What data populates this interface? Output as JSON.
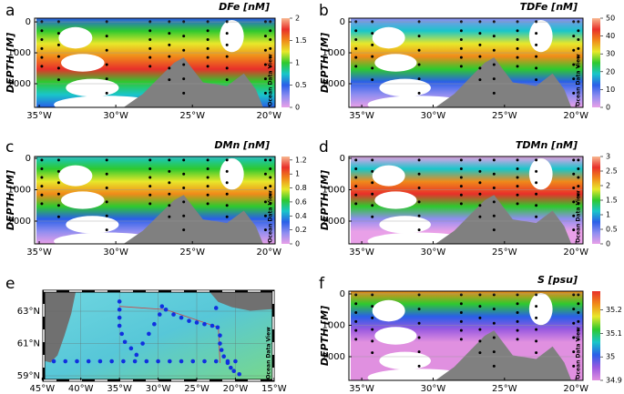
{
  "chart_data": [
    {
      "type": "section",
      "label": "a",
      "title": "DFe [nM]",
      "ylabel": "DEPTH [M]",
      "watermark": "Ocean Data View",
      "xlim": [
        -35.3,
        -19.6
      ],
      "xticks": [
        {
          "value": -35,
          "label": "35°W"
        },
        {
          "value": -30,
          "label": "30°W"
        },
        {
          "value": -25,
          "label": "25°W"
        },
        {
          "value": -20,
          "label": "20°W"
        }
      ],
      "ylim": [
        2765,
        -120
      ],
      "yticks": [
        0,
        1000,
        2000
      ],
      "colormap": [
        "#e9a0e8",
        "#8f8df0",
        "#2a5fe8",
        "#19c6c9",
        "#2ec92e",
        "#e8e82a",
        "#f08a1a",
        "#e8302a",
        "#f8b890"
      ],
      "clim": [
        0,
        2
      ],
      "cticks": [
        0,
        0.5,
        1,
        1.5,
        2
      ]
    },
    {
      "type": "section",
      "label": "b",
      "title": "TDFe [nM]",
      "ylabel": "DEPTH [M]",
      "watermark": "Ocean Data View",
      "xlim": [
        -35.9,
        -19.5
      ],
      "xticks": [
        {
          "value": -35,
          "label": "35°W"
        },
        {
          "value": -30,
          "label": "30°W"
        },
        {
          "value": -25,
          "label": "25°W"
        },
        {
          "value": -20,
          "label": "20°W"
        }
      ],
      "ylim": [
        2765,
        -120
      ],
      "yticks": [
        0,
        1000,
        2000
      ],
      "colormap": [
        "#e9a0e8",
        "#8f8df0",
        "#2a5fe8",
        "#19c6c9",
        "#2ec92e",
        "#e8e82a",
        "#f08a1a",
        "#e8302a",
        "#f8b890"
      ],
      "clim": [
        0,
        50
      ],
      "cticks": [
        0,
        10,
        20,
        30,
        40,
        50
      ]
    },
    {
      "type": "section",
      "label": "c",
      "title": "DMn [nM]",
      "ylabel": "DEPTH [M]",
      "watermark": "Ocean Data View",
      "xlim": [
        -35.3,
        -19.6
      ],
      "xticks": [
        {
          "value": -35,
          "label": "35°W"
        },
        {
          "value": -30,
          "label": "30°W"
        },
        {
          "value": -25,
          "label": "25°W"
        },
        {
          "value": -20,
          "label": "20°W"
        }
      ],
      "ylim": [
        2725,
        -58
      ],
      "yticks": [
        0,
        1000,
        2000
      ],
      "colormap": [
        "#e9a0e8",
        "#8f8df0",
        "#2a5fe8",
        "#19c6c9",
        "#2ec92e",
        "#e8e82a",
        "#f08a1a",
        "#e8302a",
        "#f8b890"
      ],
      "clim": [
        0,
        1.25
      ],
      "cticks": [
        0,
        0.2,
        0.4,
        0.6,
        0.8,
        1,
        1.2
      ]
    },
    {
      "type": "section",
      "label": "d",
      "title": "TDMn [nM]",
      "ylabel": "DEPTH [M]",
      "watermark": "Ocean Data View",
      "xlim": [
        -35.9,
        -19.5
      ],
      "xticks": [
        {
          "value": -35,
          "label": "35°W"
        },
        {
          "value": -30,
          "label": "30°W"
        },
        {
          "value": -25,
          "label": "25°W"
        },
        {
          "value": -20,
          "label": "20°W"
        }
      ],
      "ylim": [
        2725,
        -58
      ],
      "yticks": [
        0,
        1000,
        2000
      ],
      "colormap": [
        "#e9a0e8",
        "#8f8df0",
        "#2a5fe8",
        "#19c6c9",
        "#2ec92e",
        "#e8e82a",
        "#f08a1a",
        "#e8302a",
        "#f8b890"
      ],
      "clim": [
        0,
        3
      ],
      "cticks": [
        0,
        0.5,
        1,
        1.5,
        2,
        2.5,
        3
      ]
    },
    {
      "type": "map",
      "label": "e",
      "watermark": "Ocean Data View",
      "xlim": [
        -44.8,
        -15.1
      ],
      "xticks": [
        {
          "value": -45,
          "label": "45°W"
        },
        {
          "value": -40,
          "label": "40°W"
        },
        {
          "value": -35,
          "label": "35°W"
        },
        {
          "value": -30,
          "label": "30°W"
        },
        {
          "value": -25,
          "label": "25°W"
        },
        {
          "value": -20,
          "label": "20°W"
        },
        {
          "value": -15,
          "label": "15°W"
        }
      ],
      "ylim": [
        58.72,
        64.24
      ],
      "yticks": [
        {
          "value": 59,
          "label": "59°N"
        },
        {
          "value": 61,
          "label": "61°N"
        },
        {
          "value": 63,
          "label": "63°N"
        }
      ],
      "color": "#1030e0",
      "x": [
        -43.5,
        -42,
        -40.5,
        -39,
        -37.5,
        -36,
        -34.5,
        -33,
        -31.5,
        -30,
        -28.5,
        -27,
        -25.5,
        -24,
        -22.5,
        -21,
        -20,
        -35,
        -35,
        -35,
        -35,
        -34.7,
        -34.3,
        -33.5,
        -32.8,
        -32,
        -31.2,
        -30.5,
        -29.8,
        -29.5,
        -29,
        -28,
        -27,
        -26,
        -25,
        -24,
        -23,
        -22.3,
        -22,
        -22,
        -21.8,
        -21.5,
        -21,
        -20.6,
        -20.2,
        -19.5,
        -22.5
      ],
      "y": [
        59.9,
        59.9,
        59.9,
        59.9,
        59.9,
        59.9,
        59.9,
        59.9,
        59.9,
        59.9,
        59.9,
        59.9,
        59.9,
        59.9,
        59.9,
        59.9,
        59.9,
        63.6,
        63.1,
        62.6,
        62.1,
        61.6,
        61.1,
        60.7,
        60.3,
        61,
        61.6,
        62.2,
        62.8,
        63.3,
        63.1,
        62.8,
        62.6,
        62.4,
        62.3,
        62.2,
        62.1,
        62,
        61.5,
        61,
        60.6,
        60.2,
        59.8,
        59.5,
        59.3,
        59.1,
        63.2
      ]
    },
    {
      "type": "section",
      "label": "f",
      "title": "S [psu]",
      "ylabel": "DEPTH [M]",
      "watermark": "Ocean Data View",
      "xlim": [
        -35.9,
        -19.5
      ],
      "xticks": [
        {
          "value": -35,
          "label": "35°W"
        },
        {
          "value": -30,
          "label": "30°W"
        },
        {
          "value": -25,
          "label": "25°W"
        },
        {
          "value": -20,
          "label": "20°W"
        }
      ],
      "ylim": [
        2754,
        -87
      ],
      "yticks": [
        0,
        1000,
        2000
      ],
      "colormap": [
        "#e090e0",
        "#9a5ae0",
        "#2a5fe8",
        "#19c6c9",
        "#2ec92e",
        "#e8e82a",
        "#f08a1a",
        "#e8302a"
      ],
      "clim": [
        34.9,
        35.28
      ],
      "cticks": [
        34.9,
        35,
        35.1,
        35.2
      ]
    }
  ]
}
